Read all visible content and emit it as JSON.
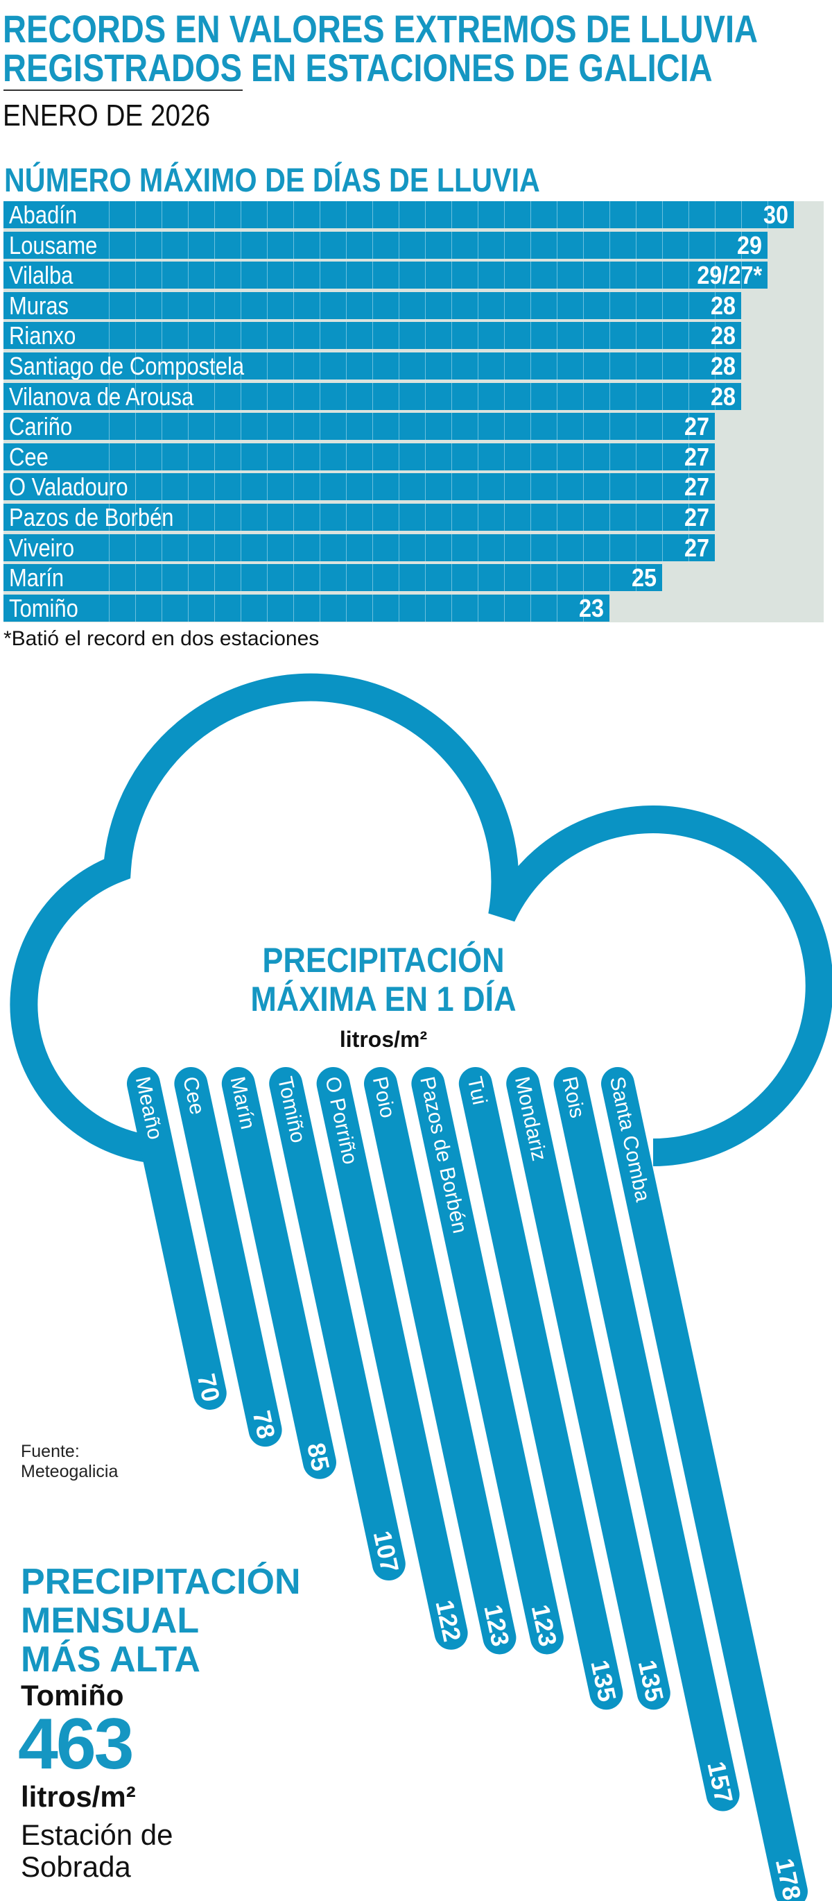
{
  "header": {
    "title_line1": "RECORDS EN VALORES EXTREMOS DE LLUVIA",
    "title_line2": "REGISTRADOS EN ESTACIONES DE GALICIA",
    "subtitle": "ENERO DE 2026"
  },
  "colors": {
    "accent": "#0a93c4",
    "panel": "#dbe3de",
    "text": "#111111"
  },
  "chart_data": [
    {
      "type": "bar",
      "orientation": "horizontal",
      "title": "NÚMERO MÁXIMO DE DÍAS DE LLUVIA",
      "categories": [
        "Abadín",
        "Lousame",
        "Vilalba",
        "Muras",
        "Rianxo",
        "Santiago de Compostela",
        "Vilanova de Arousa",
        "Cariño",
        "Cee",
        "O Valadouro",
        "Pazos de Borbén",
        "Viveiro",
        "Marín",
        "Tomiño"
      ],
      "values": [
        30,
        29,
        29,
        28,
        28,
        28,
        28,
        27,
        27,
        27,
        27,
        27,
        25,
        23
      ],
      "labels": [
        "30",
        "29",
        "29/27*",
        "28",
        "28",
        "28",
        "28",
        "27",
        "27",
        "27",
        "27",
        "27",
        "25",
        "23"
      ],
      "xlim": [
        0,
        31
      ],
      "footnote": "*Batió el record en dos estaciones"
    },
    {
      "type": "bar",
      "orientation": "diagonal",
      "title_line1": "PRECIPITACIÓN",
      "title_line2": "MÁXIMA EN 1 DÍA",
      "unit": "litros/m²",
      "categories": [
        "Meaño",
        "Cee",
        "Marín",
        "Tomiño",
        "O Porriño",
        "Poio",
        "Pazos de Borbén",
        "Tui",
        "Mondariz",
        "Rois",
        "Santa Comba"
      ],
      "values": [
        70,
        78,
        85,
        107,
        122,
        123,
        123,
        135,
        135,
        157,
        178
      ]
    }
  ],
  "source": {
    "label": "Fuente:",
    "name": "Meteogalicia"
  },
  "monthly": {
    "title_line1": "PRECIPITACIÓN",
    "title_line2": "MENSUAL",
    "title_line3": "MÁS ALTA",
    "place": "Tomiño",
    "value": "463",
    "unit": "litros/m²",
    "station_line1": "Estación de",
    "station_line2": "Sobrada"
  }
}
